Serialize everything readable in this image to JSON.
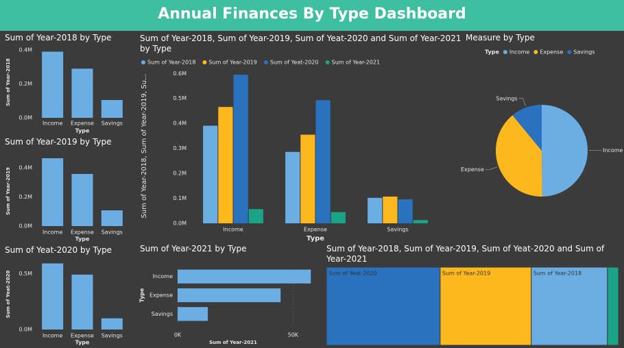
{
  "title": "Annual Finances By Type Dashboard",
  "chart_data": [
    {
      "type": "bar",
      "title": "Sum of Year-2018 by Type",
      "categories": [
        "Income",
        "Expense",
        "Savings"
      ],
      "values": [
        0.39,
        0.29,
        0.105
      ],
      "color": "#6aaee3",
      "ylim": [
        0,
        0.42
      ],
      "yticks": [
        {
          "value": 0,
          "label": "0.0M"
        },
        {
          "value": 0.2,
          "label": "0.2M"
        },
        {
          "value": 0.4,
          "label": "0.4M"
        }
      ],
      "y_label": "Sum of Year-2018",
      "x_label": "Type",
      "grid": false
    },
    {
      "type": "bar",
      "title": "Sum of Year-2019 by Type",
      "categories": [
        "Income",
        "Expense",
        "Savings"
      ],
      "values": [
        0.466,
        0.358,
        0.108
      ],
      "color": "#6aaee3",
      "ylim": [
        0,
        0.48
      ],
      "yticks": [
        {
          "value": 0,
          "label": "0.0M"
        },
        {
          "value": 0.2,
          "label": "0.2M"
        },
        {
          "value": 0.4,
          "label": "0.4M"
        }
      ],
      "y_label": "Sum of Year-2019",
      "x_label": "Type",
      "grid": false
    },
    {
      "type": "bar",
      "title": "Sum of Yeat-2020 by Type",
      "categories": [
        "Income",
        "Expense",
        "Savings"
      ],
      "values": [
        0.59,
        0.49,
        0.1
      ],
      "color": "#6aaee3",
      "ylim": [
        0,
        0.63
      ],
      "yticks": [
        {
          "value": 0,
          "label": "0.0M"
        },
        {
          "value": 0.5,
          "label": "0.5M"
        }
      ],
      "y_label": "Sum of Yeat-2020",
      "x_label": "Type",
      "grid": false
    },
    {
      "type": "bar",
      "title": "Sum of Year-2018, Sum of Year-2019, Sum of Yeat-2020 and Sum of Year-2021 by Type",
      "categories": [
        "Income",
        "Expense",
        "Savings"
      ],
      "series": [
        {
          "name": "Sum of Year-2018",
          "color": "#6aaee3",
          "values": [
            0.391,
            0.286,
            0.102
          ]
        },
        {
          "name": "Sum of Year-2019",
          "color": "#fdb81d",
          "values": [
            0.466,
            0.355,
            0.107
          ]
        },
        {
          "name": "Sum of Yeat-2020",
          "color": "#2a72c0",
          "values": [
            0.595,
            0.493,
            0.096
          ]
        },
        {
          "name": "Sum of Year-2021",
          "color": "#1ba388",
          "values": [
            0.057,
            0.045,
            0.013
          ]
        }
      ],
      "ylim": [
        0,
        0.62
      ],
      "yticks": [
        {
          "value": 0,
          "label": "0.0M"
        },
        {
          "value": 0.1,
          "label": "0.1M"
        },
        {
          "value": 0.2,
          "label": "0.2M"
        },
        {
          "value": 0.3,
          "label": "0.3M"
        },
        {
          "value": 0.4,
          "label": "0.4M"
        },
        {
          "value": 0.5,
          "label": "0.5M"
        },
        {
          "value": 0.6,
          "label": "0.6M"
        }
      ],
      "y_label": "Sum of Year-2018, Sum of Year-2019, Su...",
      "x_label": "Type",
      "grid": false,
      "legend": "top"
    },
    {
      "type": "hbar",
      "title": "Sum of Year-2021 by Type",
      "categories": [
        "Income",
        "Expense",
        "Savings"
      ],
      "values": [
        57.7,
        44.6,
        13.1
      ],
      "color": "#6aaee3",
      "xlim": [
        0,
        60
      ],
      "xticks": [
        {
          "value": 0,
          "label": "0K"
        },
        {
          "value": 50,
          "label": "50K"
        }
      ],
      "y_label": "Type",
      "x_label": "Sum of Year-2021",
      "grid": true
    },
    {
      "type": "pie",
      "title": "Measure by Type",
      "legend_title": "Type",
      "categories": [
        "Income",
        "Expense",
        "Savings"
      ],
      "values": [
        1.5,
        1.18,
        0.33
      ],
      "colors": [
        "#6aaee3",
        "#fdb81d",
        "#2a72c0"
      ],
      "legend": "top"
    },
    {
      "type": "treemap",
      "title": "Sum of Year-2018, Sum of Year-2019, Sum of Yeat-2020 and Sum of Year-2021",
      "categories": [
        "Sum of Yeat-2020",
        "Sum of Year-2019",
        "Sum of Year-2018",
        "Sum of Year-2021"
      ],
      "values": [
        1.18,
        0.945,
        0.79,
        0.115
      ],
      "colors": [
        "#2a72c0",
        "#fdb81d",
        "#6aaee3",
        "#1ba388"
      ]
    }
  ]
}
